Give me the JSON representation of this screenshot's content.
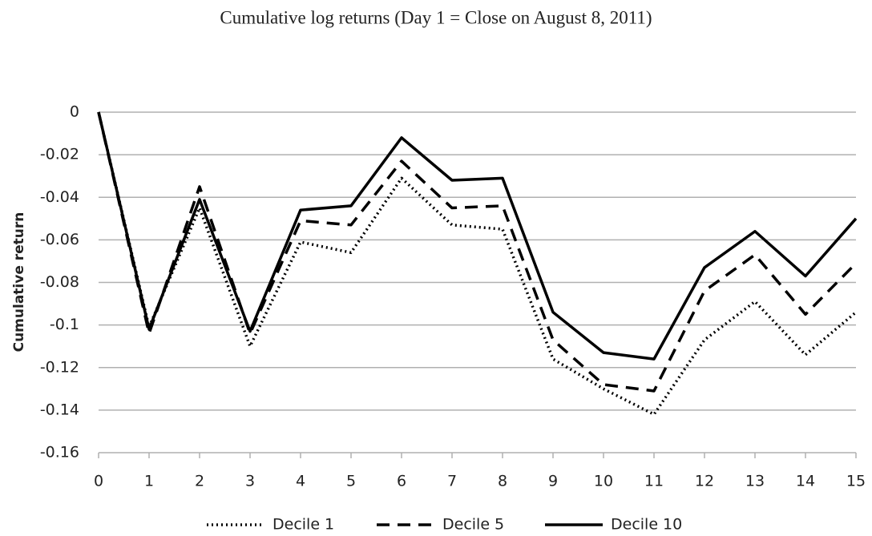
{
  "chart_data": {
    "type": "line",
    "title": "Cumulative log returns (Day 1 = Close on August 8, 2011)",
    "y_label": "Cumulative return",
    "x": [
      0,
      1,
      2,
      3,
      4,
      5,
      6,
      7,
      8,
      9,
      10,
      11,
      12,
      13,
      14,
      15
    ],
    "series": [
      {
        "name": "Decile 1",
        "color": "#000000",
        "dash": "dotted",
        "values": [
          0,
          -0.101,
          -0.045,
          -0.11,
          -0.061,
          -0.066,
          -0.031,
          -0.053,
          -0.055,
          -0.116,
          -0.13,
          -0.142,
          -0.107,
          -0.089,
          -0.114,
          -0.094
        ]
      },
      {
        "name": "Decile 5",
        "color": "#000000",
        "dash": "dashed",
        "values": [
          0,
          -0.104,
          -0.035,
          -0.104,
          -0.051,
          -0.053,
          -0.023,
          -0.045,
          -0.044,
          -0.107,
          -0.128,
          -0.131,
          -0.084,
          -0.067,
          -0.095,
          -0.071
        ]
      },
      {
        "name": "Decile 10",
        "color": "#000000",
        "dash": "solid",
        "values": [
          0,
          -0.102,
          -0.041,
          -0.103,
          -0.046,
          -0.044,
          -0.012,
          -0.032,
          -0.031,
          -0.094,
          -0.113,
          -0.116,
          -0.073,
          -0.056,
          -0.077,
          -0.05
        ]
      }
    ],
    "xlim": [
      0,
      15
    ],
    "xticks": [
      0,
      1,
      2,
      3,
      4,
      5,
      6,
      7,
      8,
      9,
      10,
      11,
      12,
      13,
      14,
      15
    ],
    "ylim": [
      -0.16,
      0
    ],
    "yticks": [
      0,
      -0.02,
      -0.04,
      -0.06,
      -0.08,
      -0.1,
      -0.12,
      -0.14,
      -0.16
    ],
    "grid": true,
    "legend": "bottom"
  }
}
